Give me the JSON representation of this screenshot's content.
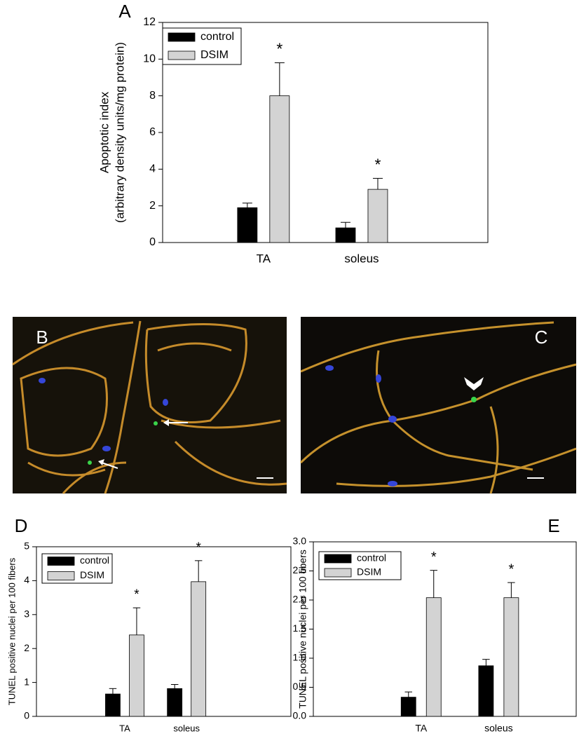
{
  "chart_data": [
    {
      "type": "bar",
      "panel_label": "A",
      "ylabel": [
        "Apoptotic index",
        "(arbitrary density units/mg protein)"
      ],
      "categories": [
        "TA",
        "soleus"
      ],
      "series": [
        {
          "name": "control",
          "color": "#000000",
          "values": [
            1.9,
            0.8
          ],
          "errors": [
            0.25,
            0.3
          ]
        },
        {
          "name": "DSIM",
          "color": "#d3d3d3",
          "values": [
            8.0,
            2.9
          ],
          "errors": [
            1.8,
            0.6
          ],
          "annotations": [
            "*",
            "*"
          ]
        }
      ],
      "ylim": [
        0,
        12
      ],
      "yticks": [
        0,
        2,
        4,
        6,
        8,
        10,
        12
      ],
      "legend": "upper left"
    },
    {
      "type": "bar",
      "panel_label": "D",
      "ylabel": [
        "TUNEL positive nuclei per 100 fibers"
      ],
      "categories": [
        "TA",
        "soleus"
      ],
      "series": [
        {
          "name": "control",
          "color": "#000000",
          "values": [
            0.66,
            0.82
          ],
          "errors": [
            0.16,
            0.12
          ]
        },
        {
          "name": "DSIM",
          "color": "#d3d3d3",
          "values": [
            2.4,
            3.97
          ],
          "errors": [
            0.8,
            0.62
          ],
          "annotations": [
            "*",
            "*"
          ]
        }
      ],
      "ylim": [
        0,
        5
      ],
      "yticks": [
        0,
        1,
        2,
        3,
        4,
        5
      ],
      "legend": "upper left"
    },
    {
      "type": "bar",
      "panel_label": "E",
      "ylabel": [
        "TUNEL positive nuclei per 100 fibers"
      ],
      "categories": [
        "TA",
        "soleus"
      ],
      "series": [
        {
          "name": "control",
          "color": "#000000",
          "values": [
            0.33,
            0.87
          ],
          "errors": [
            0.09,
            0.11
          ]
        },
        {
          "name": "DSIM",
          "color": "#d3d3d3",
          "values": [
            2.04,
            2.04
          ],
          "errors": [
            0.47,
            0.26
          ],
          "annotations": [
            "*",
            "*"
          ]
        }
      ],
      "ylim": [
        0,
        3
      ],
      "yticks": [
        {
          "value": 0,
          "label": "0.0"
        },
        {
          "value": 0.5,
          "label": "0.5"
        },
        {
          "value": 1,
          "label": "1.0"
        },
        {
          "value": 1.5,
          "label": "1.5"
        },
        {
          "value": 2,
          "label": "2.0"
        },
        {
          "value": 2.5,
          "label": "2.5"
        },
        {
          "value": 3,
          "label": "3.0"
        }
      ],
      "legend": "upper left"
    }
  ],
  "images": [
    {
      "label": "B"
    },
    {
      "label": "C"
    }
  ]
}
